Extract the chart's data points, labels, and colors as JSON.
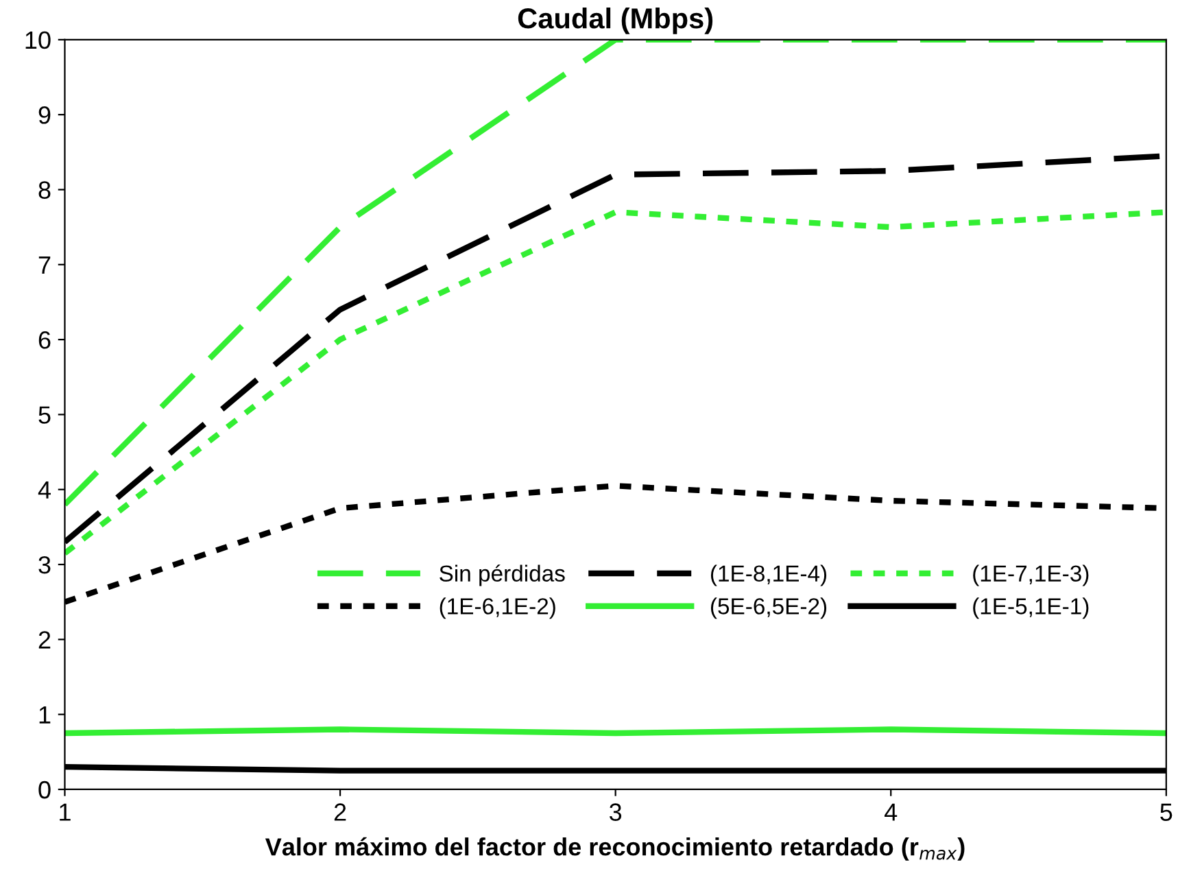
{
  "chart_data": {
    "type": "line",
    "title": "Caudal (Mbps)",
    "xlabel": "Valor máximo del factor de reconocimiento retardado (r$_{max}$)",
    "x": [
      1,
      2,
      3,
      4,
      5
    ],
    "xlim": [
      1,
      5
    ],
    "xticks": [
      1,
      2,
      3,
      4,
      5
    ],
    "ylim": [
      0,
      10
    ],
    "yticks": [
      0,
      1,
      2,
      3,
      4,
      5,
      6,
      7,
      8,
      9,
      10
    ],
    "grid": false,
    "legend": "bottom",
    "marker": "none",
    "series": [
      {
        "name": "Sin pérdidas",
        "color": "#33ee33",
        "line_style": "dashed",
        "values": [
          3.8,
          7.5,
          10,
          10,
          10
        ]
      },
      {
        "name": "(1E-8,1E-4)",
        "color": "#000000",
        "line_style": "dashed",
        "values": [
          3.3,
          6.4,
          8.2,
          8.25,
          8.45
        ]
      },
      {
        "name": "(1E-7,1E-3)",
        "color": "#33ee33",
        "line_style": "dotted",
        "values": [
          3.15,
          6.0,
          7.7,
          7.5,
          7.7
        ]
      },
      {
        "name": "(1E-6,1E-2)",
        "color": "#000000",
        "line_style": "dotted",
        "values": [
          2.5,
          3.75,
          4.05,
          3.85,
          3.75
        ]
      },
      {
        "name": "(5E-6,5E-2)",
        "color": "#33ee33",
        "line_style": "solid",
        "values": [
          0.75,
          0.8,
          0.75,
          0.8,
          0.75
        ]
      },
      {
        "name": "(1E-5,1E-1)",
        "color": "#000000",
        "line_style": "solid",
        "values": [
          0.3,
          0.25,
          0.25,
          0.25,
          0.25
        ]
      }
    ]
  }
}
